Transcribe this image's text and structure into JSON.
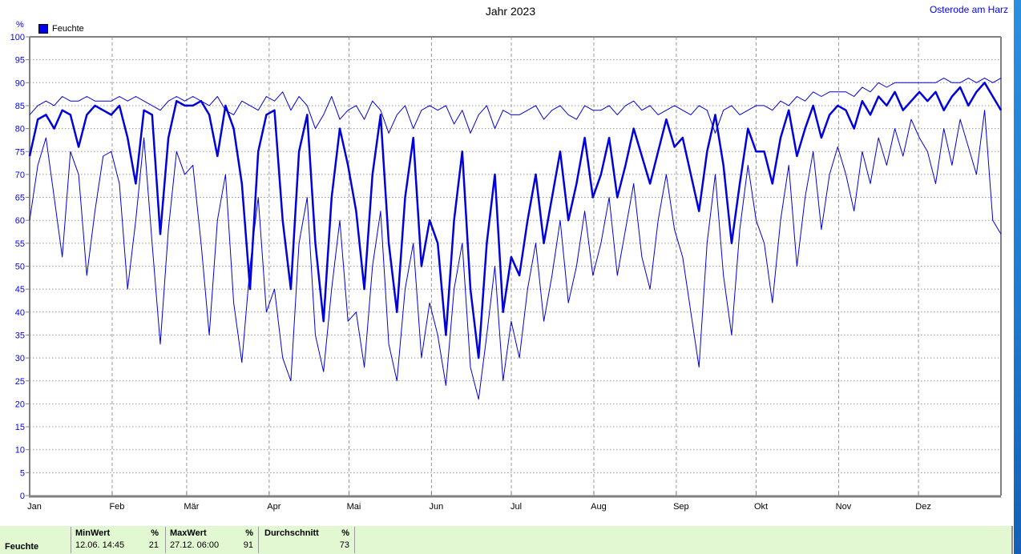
{
  "header": {
    "title": "Jahr 2023",
    "station": "Osterode am Harz"
  },
  "legend": {
    "label": "Feuchte",
    "unit": "%"
  },
  "summary": {
    "row_label": "Feuchte",
    "cols": [
      {
        "header": "MinWert",
        "unit": "%",
        "value_left": "12.06. 14:45",
        "value_right": "21"
      },
      {
        "header": "MaxWert",
        "unit": "%",
        "value_left": "27.12. 06:00",
        "value_right": "91"
      },
      {
        "header": "Durchschnitt",
        "unit": "%",
        "value_left": "",
        "value_right": "73"
      }
    ]
  },
  "colors": {
    "line": "#0000dd",
    "axis": "#808080",
    "grid": "#989898",
    "tick_label": "#0000ff",
    "month_label": "#000000",
    "table_bg": "#e2f8d2",
    "station_link": "#0000ff"
  },
  "chart_data": {
    "type": "line",
    "title": "Jahr 2023",
    "station": "Osterode am Harz",
    "ylabel": "%",
    "ylim": [
      0,
      100
    ],
    "y_tick_step": 5,
    "grid": true,
    "legend_position": "top-left",
    "legend_entries": [
      "Feuchte"
    ],
    "x_unit": "day_of_year",
    "x_range_days": [
      0,
      365
    ],
    "months": [
      "Jan",
      "Feb",
      "Mär",
      "Apr",
      "Mai",
      "Jun",
      "Jul",
      "Aug",
      "Sep",
      "Okt",
      "Nov",
      "Dez"
    ],
    "month_start_days": [
      0,
      31,
      59,
      90,
      120,
      151,
      181,
      212,
      243,
      273,
      304,
      334
    ],
    "stats": {
      "min": 21,
      "min_date": "12.06. 14:45",
      "max": 91,
      "max_date": "27.12. 06:00",
      "avg": 73
    },
    "series": [
      {
        "name": "Feuchte (oberer Tageswert)",
        "style": "thin",
        "values": [
          83,
          85,
          86,
          85,
          87,
          86,
          86,
          87,
          86,
          86,
          86,
          87,
          86,
          87,
          86,
          85,
          84,
          86,
          87,
          86,
          87,
          86,
          85,
          87,
          84,
          83,
          86,
          85,
          84,
          87,
          86,
          88,
          84,
          87,
          85,
          80,
          83,
          87,
          82,
          84,
          85,
          82,
          86,
          84,
          79,
          83,
          85,
          80,
          84,
          85,
          84,
          85,
          81,
          84,
          79,
          83,
          85,
          80,
          84,
          83,
          83,
          84,
          85,
          82,
          84,
          85,
          83,
          82,
          85,
          84,
          84,
          85,
          83,
          85,
          86,
          84,
          85,
          83,
          84,
          85,
          84,
          83,
          85,
          84,
          79,
          84,
          85,
          83,
          84,
          85,
          85,
          84,
          86,
          85,
          87,
          86,
          88,
          87,
          88,
          88,
          88,
          87,
          89,
          88,
          90,
          89,
          90,
          90,
          90,
          90,
          90,
          90,
          91,
          90,
          90,
          91,
          90,
          91,
          90,
          91
        ]
      },
      {
        "name": "Feuchte (Tagesmittel)",
        "style": "thick",
        "values": [
          74,
          82,
          83,
          80,
          84,
          83,
          76,
          83,
          85,
          84,
          83,
          85,
          78,
          68,
          84,
          83,
          57,
          78,
          86,
          85,
          85,
          86,
          83,
          74,
          85,
          80,
          68,
          45,
          75,
          83,
          84,
          60,
          45,
          75,
          83,
          55,
          38,
          65,
          80,
          72,
          62,
          45,
          70,
          83,
          55,
          40,
          65,
          78,
          50,
          60,
          55,
          35,
          60,
          75,
          45,
          30,
          55,
          70,
          40,
          52,
          48,
          60,
          70,
          55,
          65,
          75,
          60,
          68,
          78,
          65,
          70,
          78,
          65,
          72,
          80,
          74,
          68,
          75,
          82,
          76,
          78,
          70,
          62,
          75,
          83,
          72,
          55,
          68,
          80,
          75,
          75,
          68,
          78,
          84,
          74,
          80,
          85,
          78,
          83,
          85,
          84,
          80,
          86,
          83,
          87,
          85,
          88,
          84,
          86,
          88,
          86,
          88,
          84,
          87,
          89,
          85,
          88,
          90,
          87,
          84
        ]
      },
      {
        "name": "Feuchte (unterer Tageswert)",
        "style": "thin",
        "values": [
          60,
          72,
          78,
          65,
          52,
          75,
          70,
          48,
          62,
          74,
          75,
          68,
          45,
          60,
          78,
          55,
          33,
          58,
          75,
          70,
          72,
          55,
          35,
          60,
          70,
          42,
          29,
          50,
          65,
          40,
          45,
          30,
          25,
          55,
          65,
          35,
          27,
          45,
          60,
          38,
          40,
          28,
          50,
          62,
          33,
          25,
          45,
          55,
          30,
          42,
          35,
          24,
          45,
          55,
          28,
          21,
          35,
          50,
          25,
          38,
          30,
          45,
          55,
          38,
          48,
          60,
          42,
          50,
          62,
          48,
          55,
          65,
          48,
          58,
          68,
          52,
          45,
          60,
          70,
          58,
          52,
          40,
          28,
          55,
          70,
          48,
          35,
          58,
          72,
          60,
          55,
          42,
          60,
          72,
          50,
          65,
          75,
          58,
          70,
          76,
          70,
          62,
          75,
          68,
          78,
          72,
          80,
          74,
          82,
          78,
          75,
          68,
          80,
          72,
          82,
          76,
          70,
          84,
          60,
          57
        ]
      }
    ]
  }
}
